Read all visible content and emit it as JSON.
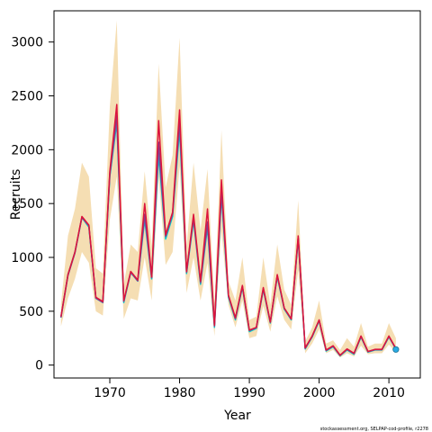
{
  "chart_data": {
    "type": "line",
    "title": "",
    "xlabel": "Year",
    "ylabel": "Recruits",
    "xlim": [
      1962,
      2014.5
    ],
    "ylim": [
      -120,
      3290
    ],
    "x_ticks": [
      1970,
      1980,
      1990,
      2000,
      2010
    ],
    "y_ticks": [
      0,
      500,
      1000,
      1500,
      2000,
      2500,
      3000
    ],
    "grid": false,
    "legend": "none",
    "credit_text": "stockassessment.org, SELPAP-cod-profile, r2278",
    "band": {
      "color": "#f5deb3",
      "lower": [
        360,
        620,
        800,
        1050,
        950,
        500,
        460,
        1350,
        1750,
        430,
        620,
        600,
        1000,
        600,
        1750,
        930,
        1050,
        1850,
        670,
        1000,
        600,
        950,
        270,
        1250,
        560,
        350,
        600,
        250,
        270,
        550,
        310,
        640,
        420,
        330,
        880,
        110,
        200,
        330,
        110,
        140,
        70,
        110,
        80,
        180,
        100,
        110,
        110,
        190,
        120
      ],
      "upper": [
        560,
        1200,
        1450,
        1880,
        1750,
        900,
        850,
        2400,
        3200,
        750,
        1120,
        1050,
        1800,
        1100,
        2800,
        1650,
        1950,
        3040,
        1100,
        1880,
        1250,
        1820,
        580,
        2180,
        780,
        600,
        1000,
        420,
        450,
        1000,
        560,
        1120,
        700,
        560,
        1530,
        220,
        350,
        600,
        200,
        230,
        140,
        250,
        170,
        390,
        170,
        200,
        200,
        390,
        250
      ]
    },
    "x": [
      1963,
      1964,
      1965,
      1966,
      1967,
      1968,
      1969,
      1970,
      1971,
      1972,
      1973,
      1974,
      1975,
      1976,
      1977,
      1978,
      1979,
      1980,
      1981,
      1982,
      1983,
      1984,
      1985,
      1986,
      1987,
      1988,
      1989,
      1990,
      1991,
      1992,
      1993,
      1994,
      1995,
      1996,
      1997,
      1998,
      1999,
      2000,
      2001,
      2002,
      2003,
      2004,
      2005,
      2006,
      2007,
      2008,
      2009,
      2010,
      2011
    ],
    "series": [
      {
        "color": "#00ced1",
        "values": [
          450,
          840,
          1050,
          1370,
          1280,
          620,
          590,
          1750,
          2250,
          580,
          860,
          780,
          1350,
          800,
          1950,
          1170,
          1380,
          2180,
          850,
          1340,
          750,
          1280,
          350,
          1570,
          630,
          420,
          720,
          310,
          340,
          700,
          390,
          820,
          520,
          420,
          1170,
          150,
          260,
          410,
          130,
          170,
          85,
          140,
          100,
          260,
          120,
          140,
          140,
          260,
          150
        ]
      },
      {
        "color": "#4682b4",
        "values": [
          440,
          830,
          1040,
          1370,
          1290,
          620,
          580,
          1760,
          2280,
          590,
          860,
          780,
          1380,
          810,
          2000,
          1190,
          1400,
          2230,
          860,
          1360,
          760,
          1310,
          360,
          1600,
          640,
          430,
          730,
          320,
          345,
          710,
          395,
          830,
          525,
          425,
          1180,
          155,
          265,
          415,
          135,
          175,
          88,
          145,
          105,
          265,
          123,
          142,
          142,
          265,
          150
        ]
      },
      {
        "color": "#8b3a8b",
        "values": [
          445,
          835,
          1045,
          1375,
          1295,
          625,
          585,
          1780,
          2320,
          595,
          865,
          785,
          1400,
          815,
          2070,
          1200,
          1410,
          2280,
          865,
          1370,
          770,
          1330,
          365,
          1620,
          645,
          432,
          733,
          322,
          348,
          712,
          398,
          833,
          528,
          428,
          1185,
          157,
          267,
          418,
          137,
          177,
          90,
          147,
          107,
          268,
          125,
          144,
          144,
          267,
          152
        ]
      },
      {
        "color": "#dc143c",
        "values": [
          450,
          840,
          1050,
          1380,
          1300,
          630,
          590,
          1800,
          2420,
          600,
          870,
          790,
          1500,
          820,
          2270,
          1210,
          1420,
          2370,
          870,
          1400,
          780,
          1450,
          370,
          1720,
          650,
          440,
          740,
          325,
          350,
          720,
          400,
          840,
          530,
          430,
          1200,
          160,
          270,
          420,
          140,
          180,
          92,
          150,
          110,
          270,
          127,
          146,
          146,
          270,
          155
        ]
      }
    ],
    "end_marker": {
      "x": 2011,
      "y": 145,
      "color": "#29abe2"
    }
  }
}
